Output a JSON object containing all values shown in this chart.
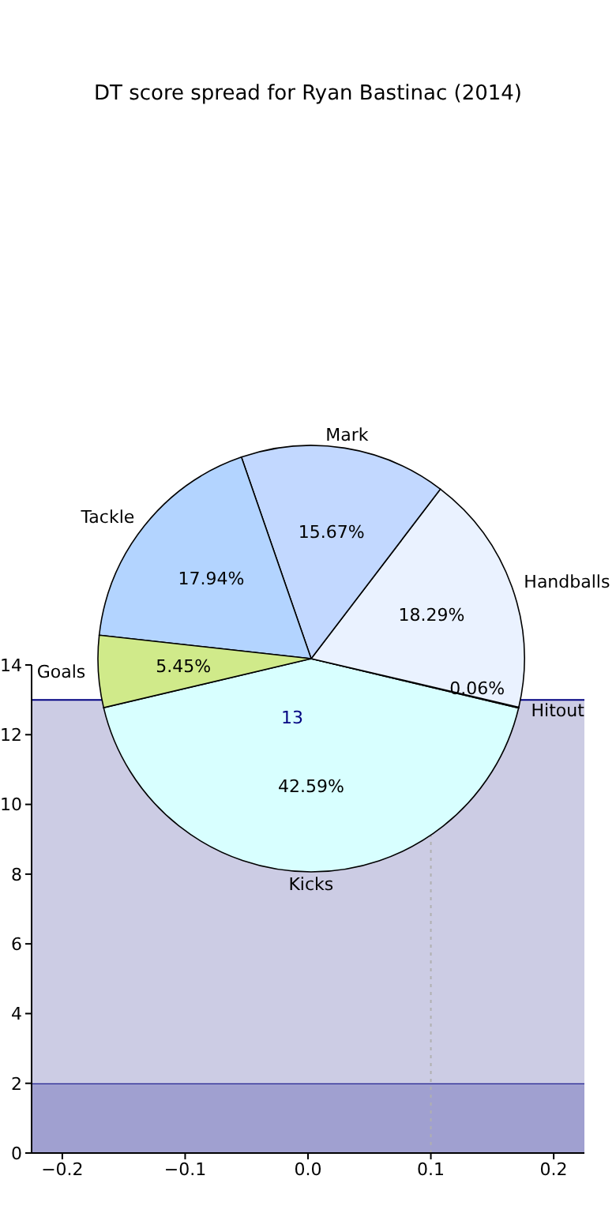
{
  "chart_data": [
    {
      "type": "pie",
      "title": "DT score spread for Ryan Bastinac (2014)",
      "categories": [
        "Kicks",
        "Hitout",
        "Handballs",
        "Mark",
        "Tackle",
        "Goals"
      ],
      "values": [
        42.59,
        0.06,
        18.29,
        15.67,
        17.94,
        5.45
      ],
      "colors": [
        "#d8ffff",
        "#ffffff",
        "#eaf2ff",
        "#c2d8ff",
        "#b3d4ff",
        "#d0ea8a"
      ],
      "value_labels": [
        "42.59%",
        "0.06%",
        "18.29%",
        "15.67%",
        "17.94%",
        "5.45%"
      ]
    },
    {
      "type": "area",
      "x": [
        -0.225,
        0.225
      ],
      "xlim": [
        -0.225,
        0.225
      ],
      "xticks": [
        {
          "value": -0.2,
          "label": "−0.2"
        },
        {
          "value": -0.1,
          "label": "−0.1"
        },
        {
          "value": 0,
          "label": "0.0"
        },
        {
          "value": 0.1,
          "label": "0.1"
        },
        {
          "value": 0.2,
          "label": "0.2"
        }
      ],
      "ylim": [
        0,
        14
      ],
      "yticks": [
        0,
        2,
        4,
        6,
        8,
        10,
        12,
        14
      ],
      "stacked": true,
      "series": [
        {
          "color": "#a0a0d0",
          "values": [
            2,
            2
          ]
        },
        {
          "color": "#cccce4",
          "values": [
            11,
            11
          ]
        }
      ],
      "ref_lines": [
        {
          "axis": "x",
          "value": 0.1,
          "color": "#b0b0b0",
          "line_style": "dotted"
        }
      ],
      "annotations": [
        {
          "text": "13",
          "x": 0,
          "y": 13
        }
      ]
    }
  ]
}
